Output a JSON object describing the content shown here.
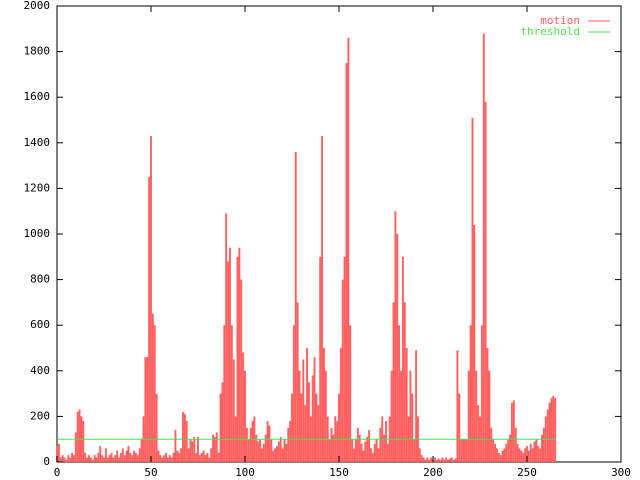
{
  "chart_data": {
    "type": "impulse",
    "xlim": [
      0,
      300
    ],
    "xticks": [
      0,
      50,
      100,
      150,
      200,
      250,
      300
    ],
    "ylim": [
      0,
      2000
    ],
    "yticks": [
      0,
      200,
      400,
      600,
      800,
      1000,
      1200,
      1400,
      1600,
      1800,
      2000
    ],
    "series": [
      {
        "name": "motion",
        "color": "#ff5f5f",
        "style": "impulses",
        "x": [
          0,
          1,
          2,
          3,
          4,
          5,
          6,
          7,
          8,
          9,
          10,
          11,
          12,
          13,
          14,
          15,
          16,
          17,
          18,
          19,
          20,
          21,
          22,
          23,
          24,
          25,
          26,
          27,
          28,
          29,
          30,
          31,
          32,
          33,
          34,
          35,
          36,
          37,
          38,
          39,
          40,
          41,
          42,
          43,
          44,
          45,
          46,
          47,
          48,
          49,
          50,
          51,
          52,
          53,
          54,
          55,
          56,
          57,
          58,
          59,
          60,
          61,
          62,
          63,
          64,
          65,
          66,
          67,
          68,
          69,
          70,
          71,
          72,
          73,
          74,
          75,
          76,
          77,
          78,
          79,
          80,
          81,
          82,
          83,
          84,
          85,
          86,
          87,
          88,
          89,
          90,
          91,
          92,
          93,
          94,
          95,
          96,
          97,
          98,
          99,
          100,
          101,
          102,
          103,
          104,
          105,
          106,
          107,
          108,
          109,
          110,
          111,
          112,
          113,
          114,
          115,
          116,
          117,
          118,
          119,
          120,
          121,
          122,
          123,
          124,
          125,
          126,
          127,
          128,
          129,
          130,
          131,
          132,
          133,
          134,
          135,
          136,
          137,
          138,
          139,
          140,
          141,
          142,
          143,
          144,
          145,
          146,
          147,
          148,
          149,
          150,
          151,
          152,
          153,
          154,
          155,
          156,
          157,
          158,
          159,
          160,
          161,
          162,
          163,
          164,
          165,
          166,
          167,
          168,
          169,
          170,
          171,
          172,
          173,
          174,
          175,
          176,
          177,
          178,
          179,
          180,
          181,
          182,
          183,
          184,
          185,
          186,
          187,
          188,
          189,
          190,
          191,
          192,
          193,
          194,
          195,
          196,
          197,
          198,
          199,
          200,
          201,
          202,
          203,
          204,
          205,
          206,
          207,
          208,
          209,
          210,
          211,
          212,
          213,
          214,
          215,
          216,
          217,
          218,
          219,
          220,
          221,
          222,
          223,
          224,
          225,
          226,
          227,
          228,
          229,
          230,
          231,
          232,
          233,
          234,
          235,
          236,
          237,
          238,
          239,
          240,
          241,
          242,
          243,
          244,
          245,
          246,
          247,
          248,
          249,
          250,
          251,
          252,
          253,
          254,
          255,
          256,
          257,
          258,
          259,
          260,
          261,
          262,
          263,
          264,
          265
        ],
        "values": [
          70,
          80,
          20,
          30,
          20,
          10,
          30,
          20,
          40,
          30,
          130,
          220,
          230,
          200,
          180,
          40,
          20,
          30,
          20,
          10,
          30,
          20,
          40,
          70,
          30,
          20,
          60,
          20,
          30,
          40,
          20,
          30,
          50,
          20,
          40,
          60,
          30,
          50,
          70,
          40,
          30,
          50,
          40,
          30,
          60,
          100,
          200,
          460,
          460,
          1250,
          1430,
          650,
          600,
          300,
          50,
          30,
          20,
          30,
          40,
          20,
          30,
          20,
          40,
          140,
          50,
          40,
          60,
          220,
          210,
          180,
          60,
          100,
          90,
          110,
          40,
          110,
          30,
          40,
          50,
          30,
          40,
          20,
          60,
          120,
          110,
          130,
          40,
          300,
          350,
          600,
          1090,
          880,
          940,
          600,
          450,
          200,
          900,
          940,
          800,
          480,
          400,
          150,
          100,
          150,
          180,
          200,
          120,
          90,
          100,
          60,
          80,
          120,
          180,
          160,
          100,
          50,
          60,
          70,
          90,
          110,
          60,
          100,
          80,
          150,
          180,
          300,
          600,
          1360,
          700,
          400,
          300,
          450,
          250,
          500,
          350,
          200,
          380,
          460,
          300,
          250,
          900,
          1430,
          500,
          400,
          200,
          100,
          150,
          120,
          200,
          180,
          300,
          500,
          800,
          900,
          1750,
          1860,
          600,
          100,
          60,
          100,
          150,
          120,
          80,
          50,
          90,
          110,
          140,
          60,
          40,
          80,
          100,
          60,
          150,
          200,
          120,
          180,
          80,
          200,
          400,
          700,
          1100,
          1000,
          600,
          400,
          900,
          700,
          500,
          200,
          400,
          300,
          100,
          490,
          200,
          60,
          30,
          20,
          10,
          20,
          10,
          20,
          10,
          20,
          10,
          15,
          10,
          20,
          10,
          20,
          10,
          15,
          20,
          10,
          15,
          490,
          300,
          100,
          100,
          100,
          100,
          400,
          600,
          1510,
          1040,
          400,
          250,
          200,
          600,
          1880,
          1580,
          500,
          400,
          150,
          100,
          80,
          60,
          40,
          30,
          50,
          60,
          80,
          100,
          120,
          260,
          270,
          150,
          80,
          60,
          50,
          40,
          60,
          70,
          50,
          80,
          60,
          90,
          100,
          70,
          60,
          120,
          150,
          200,
          230,
          260,
          280,
          290,
          280
        ]
      },
      {
        "name": "threshold",
        "color": "#4ee04e",
        "style": "line",
        "x": [
          0,
          265
        ],
        "values": [
          100,
          100
        ]
      }
    ],
    "legend": "upper right"
  }
}
